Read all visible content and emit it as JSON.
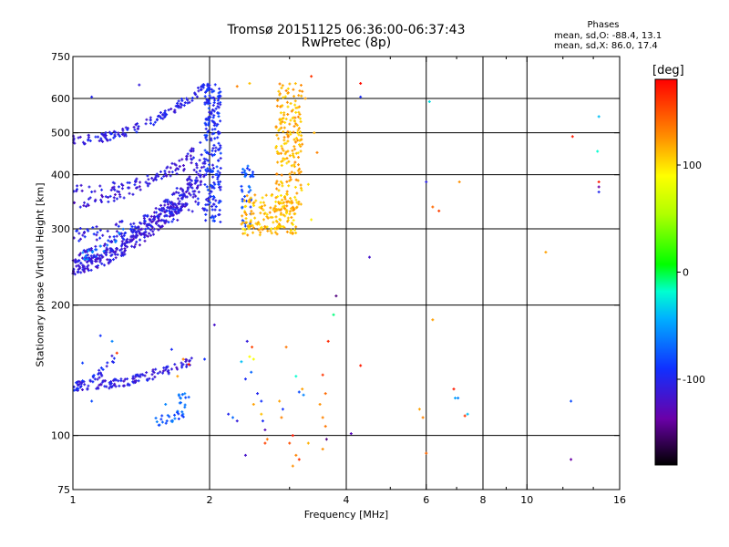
{
  "chart_data": {
    "type": "scatter",
    "title": "Tromsø 20151125 06:36:00-06:37:43",
    "subtitle": "RwPretec (8p)",
    "xlabel": "Frequency [MHz]",
    "ylabel": "Stationary phase Virtual Height [km]",
    "x_scale": "log",
    "y_scale": "log",
    "xlim": [
      1,
      16
    ],
    "ylim": [
      75,
      750
    ],
    "x_ticks": [
      1,
      2,
      4,
      6,
      8,
      10,
      16
    ],
    "y_ticks": [
      75,
      100,
      200,
      300,
      400,
      500,
      600,
      750
    ],
    "x_gridlines": [
      2,
      4,
      6,
      8,
      10
    ],
    "y_gridlines": [
      100,
      200,
      300,
      400,
      500,
      600
    ],
    "grid": true,
    "colorbar": {
      "label": "[deg]",
      "range": [
        -180,
        180
      ],
      "ticks": [
        100,
        0,
        -100
      ]
    },
    "stats": {
      "heading": "Phases",
      "line1": "mean, sd,O:  -88.4, 13.1",
      "line2": "mean, sd,X:  86.0, 17.4"
    },
    "point_groups": [
      {
        "x0": 1.0,
        "x1": 1.95,
        "h0": 480,
        "h1": 640,
        "phase": -105,
        "n": 130,
        "form": "trace"
      },
      {
        "x0": 1.0,
        "x1": 1.95,
        "h0": 370,
        "h1": 440,
        "phase": -110,
        "n": 60,
        "form": "trace"
      },
      {
        "x0": 1.0,
        "x1": 1.92,
        "h0": 345,
        "h1": 470,
        "phase": -112,
        "n": 70,
        "form": "trace"
      },
      {
        "x0": 1.0,
        "x1": 1.95,
        "h0": 245,
        "h1": 390,
        "phase": -113,
        "n": 240,
        "form": "curve"
      },
      {
        "x0": 1.0,
        "x1": 1.95,
        "h0": 255,
        "h1": 420,
        "phase": -110,
        "n": 180,
        "form": "curve"
      },
      {
        "x0": 1.0,
        "x1": 1.95,
        "h0": 290,
        "h1": 345,
        "phase": -105,
        "n": 90,
        "form": "curve"
      },
      {
        "x0": 1.05,
        "x1": 1.3,
        "h0": 260,
        "h1": 305,
        "phase": -70,
        "n": 20,
        "form": "trace"
      },
      {
        "x0": 1.95,
        "x1": 2.12,
        "h0": 310,
        "h1": 650,
        "phase": -95,
        "n": 210,
        "form": "column"
      },
      {
        "x0": 2.35,
        "x1": 2.5,
        "h0": 300,
        "h1": 420,
        "phase": -80,
        "n": 40,
        "form": "column"
      },
      {
        "x0": 2.35,
        "x1": 3.1,
        "h0": 290,
        "h1": 360,
        "phase": 110,
        "n": 160,
        "form": "blob"
      },
      {
        "x0": 2.8,
        "x1": 3.2,
        "h0": 330,
        "h1": 650,
        "phase": 115,
        "n": 200,
        "form": "column"
      },
      {
        "x0": 1.0,
        "x1": 1.85,
        "h0": 130,
        "h1": 150,
        "phase": -110,
        "n": 120,
        "form": "trace"
      },
      {
        "x0": 1.0,
        "x1": 1.25,
        "h0": 130,
        "h1": 155,
        "phase": -100,
        "n": 30,
        "form": "trace"
      },
      {
        "x0": 1.5,
        "x1": 1.8,
        "h0": 108,
        "h1": 115,
        "phase": -75,
        "n": 25,
        "form": "trace"
      },
      {
        "x0": 1.7,
        "x1": 1.8,
        "h0": 115,
        "h1": 125,
        "phase": -70,
        "n": 12,
        "form": "column"
      }
    ],
    "points": [
      {
        "x": 1.4,
        "y": 645,
        "phase": -110
      },
      {
        "x": 1.1,
        "y": 605,
        "phase": -100
      },
      {
        "x": 2.3,
        "y": 640,
        "phase": 130
      },
      {
        "x": 2.45,
        "y": 650,
        "phase": 110
      },
      {
        "x": 3.35,
        "y": 675,
        "phase": 160
      },
      {
        "x": 3.25,
        "y": 600,
        "phase": 120
      },
      {
        "x": 3.4,
        "y": 500,
        "phase": 115
      },
      {
        "x": 3.45,
        "y": 450,
        "phase": 130
      },
      {
        "x": 3.3,
        "y": 380,
        "phase": 100
      },
      {
        "x": 3.35,
        "y": 315,
        "phase": 95
      },
      {
        "x": 4.3,
        "y": 650,
        "phase": 175
      },
      {
        "x": 4.3,
        "y": 605,
        "phase": -95
      },
      {
        "x": 6.0,
        "y": 385,
        "phase": -105
      },
      {
        "x": 6.2,
        "y": 337,
        "phase": 140
      },
      {
        "x": 6.4,
        "y": 330,
        "phase": 155
      },
      {
        "x": 7.1,
        "y": 385,
        "phase": 125
      },
      {
        "x": 6.1,
        "y": 590,
        "phase": -30
      },
      {
        "x": 11.0,
        "y": 265,
        "phase": 120
      },
      {
        "x": 12.6,
        "y": 490,
        "phase": 170
      },
      {
        "x": 14.4,
        "y": 545,
        "phase": -40
      },
      {
        "x": 14.4,
        "y": 385,
        "phase": 170
      },
      {
        "x": 14.4,
        "y": 375,
        "phase": -140
      },
      {
        "x": 14.4,
        "y": 365,
        "phase": -100
      },
      {
        "x": 14.3,
        "y": 453,
        "phase": -20
      },
      {
        "x": 4.5,
        "y": 258,
        "phase": -120
      },
      {
        "x": 3.8,
        "y": 210,
        "phase": -150
      },
      {
        "x": 3.75,
        "y": 190,
        "phase": -10
      },
      {
        "x": 6.2,
        "y": 185,
        "phase": 120
      },
      {
        "x": 1.15,
        "y": 170,
        "phase": -90
      },
      {
        "x": 1.22,
        "y": 165,
        "phase": -60
      },
      {
        "x": 1.25,
        "y": 155,
        "phase": 160
      },
      {
        "x": 1.05,
        "y": 147,
        "phase": -85
      },
      {
        "x": 1.65,
        "y": 158,
        "phase": -95
      },
      {
        "x": 1.75,
        "y": 150,
        "phase": 130
      },
      {
        "x": 1.7,
        "y": 137,
        "phase": 120
      },
      {
        "x": 1.1,
        "y": 120,
        "phase": -80
      },
      {
        "x": 1.6,
        "y": 118,
        "phase": -60
      },
      {
        "x": 2.05,
        "y": 180,
        "phase": -120
      },
      {
        "x": 2.35,
        "y": 148,
        "phase": -40
      },
      {
        "x": 2.42,
        "y": 165,
        "phase": -110
      },
      {
        "x": 2.48,
        "y": 160,
        "phase": 155
      },
      {
        "x": 2.45,
        "y": 152,
        "phase": 90
      },
      {
        "x": 2.5,
        "y": 150,
        "phase": 85
      },
      {
        "x": 2.47,
        "y": 140,
        "phase": -70
      },
      {
        "x": 2.4,
        "y": 135,
        "phase": -95
      },
      {
        "x": 2.55,
        "y": 125,
        "phase": -100
      },
      {
        "x": 2.5,
        "y": 118,
        "phase": 120
      },
      {
        "x": 2.6,
        "y": 120,
        "phase": -90
      },
      {
        "x": 2.62,
        "y": 108,
        "phase": -95
      },
      {
        "x": 2.6,
        "y": 112,
        "phase": 110
      },
      {
        "x": 2.65,
        "y": 103,
        "phase": -130
      },
      {
        "x": 2.68,
        "y": 98,
        "phase": 135
      },
      {
        "x": 2.65,
        "y": 96,
        "phase": 155
      },
      {
        "x": 2.85,
        "y": 120,
        "phase": 120
      },
      {
        "x": 2.9,
        "y": 115,
        "phase": -90
      },
      {
        "x": 2.88,
        "y": 110,
        "phase": 130
      },
      {
        "x": 3.05,
        "y": 100,
        "phase": 170
      },
      {
        "x": 3.0,
        "y": 96,
        "phase": 150
      },
      {
        "x": 3.1,
        "y": 90,
        "phase": 130
      },
      {
        "x": 3.15,
        "y": 88,
        "phase": 160
      },
      {
        "x": 3.05,
        "y": 85,
        "phase": 125
      },
      {
        "x": 2.95,
        "y": 160,
        "phase": 135
      },
      {
        "x": 3.1,
        "y": 137,
        "phase": -20
      },
      {
        "x": 3.15,
        "y": 126,
        "phase": -80
      },
      {
        "x": 3.2,
        "y": 128,
        "phase": 120
      },
      {
        "x": 3.22,
        "y": 124,
        "phase": -60
      },
      {
        "x": 3.3,
        "y": 96,
        "phase": 115
      },
      {
        "x": 3.55,
        "y": 138,
        "phase": 160
      },
      {
        "x": 3.6,
        "y": 125,
        "phase": 140
      },
      {
        "x": 3.5,
        "y": 118,
        "phase": 125
      },
      {
        "x": 3.55,
        "y": 110,
        "phase": 130
      },
      {
        "x": 3.6,
        "y": 105,
        "phase": 135
      },
      {
        "x": 3.62,
        "y": 98,
        "phase": -150
      },
      {
        "x": 3.55,
        "y": 93,
        "phase": 125
      },
      {
        "x": 3.65,
        "y": 165,
        "phase": 165
      },
      {
        "x": 2.3,
        "y": 108,
        "phase": -110
      },
      {
        "x": 2.25,
        "y": 110,
        "phase": -70
      },
      {
        "x": 2.2,
        "y": 112,
        "phase": -100
      },
      {
        "x": 2.4,
        "y": 90,
        "phase": -120
      },
      {
        "x": 4.3,
        "y": 145,
        "phase": 170
      },
      {
        "x": 5.8,
        "y": 115,
        "phase": 120
      },
      {
        "x": 5.9,
        "y": 110,
        "phase": 130
      },
      {
        "x": 6.0,
        "y": 91,
        "phase": 140
      },
      {
        "x": 6.9,
        "y": 128,
        "phase": 170
      },
      {
        "x": 6.95,
        "y": 122,
        "phase": -50
      },
      {
        "x": 7.05,
        "y": 122,
        "phase": -60
      },
      {
        "x": 7.3,
        "y": 111,
        "phase": 160
      },
      {
        "x": 7.4,
        "y": 112,
        "phase": -40
      },
      {
        "x": 12.5,
        "y": 120,
        "phase": -80
      },
      {
        "x": 12.5,
        "y": 88,
        "phase": -140
      },
      {
        "x": 1.95,
        "y": 150,
        "phase": -90
      },
      {
        "x": 1.8,
        "y": 146,
        "phase": 170
      },
      {
        "x": 4.1,
        "y": 101,
        "phase": -130
      }
    ]
  }
}
